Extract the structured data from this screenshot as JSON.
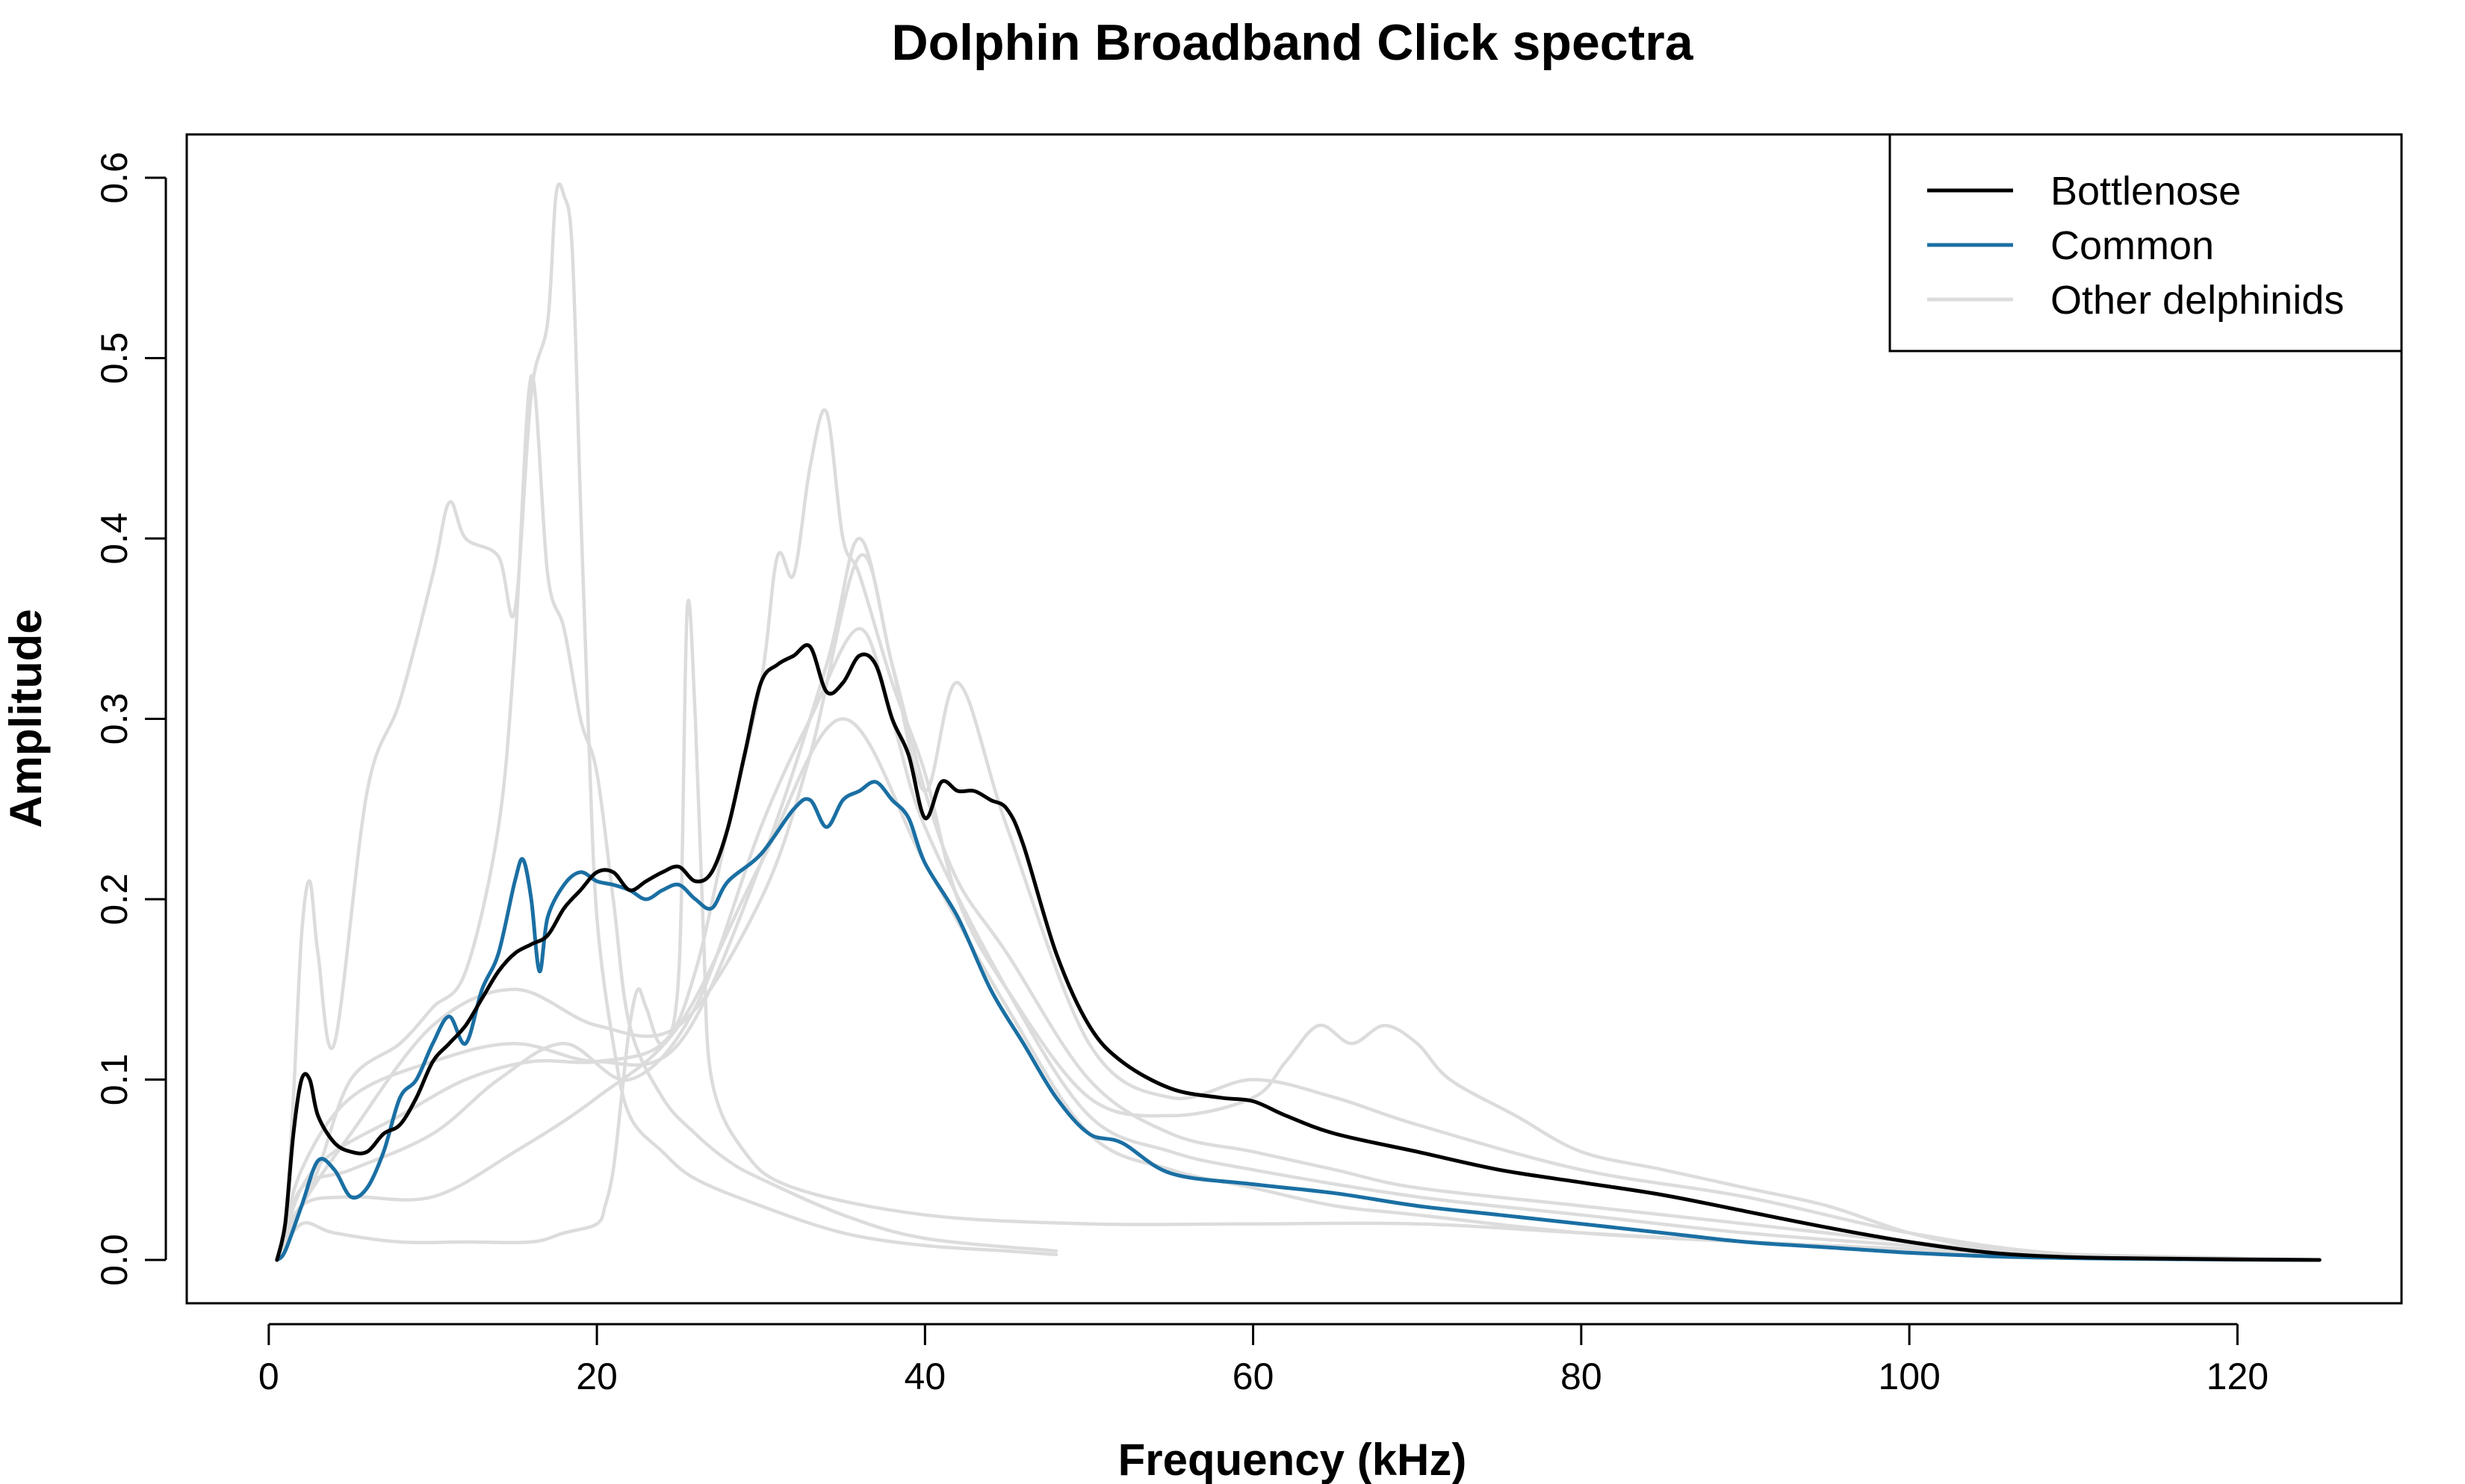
{
  "chart_data": {
    "type": "line",
    "title": "Dolphin Broadband Click spectra",
    "xlabel": "Frequency (kHz)",
    "ylabel": "Amplitude",
    "xlim": [
      -5,
      130
    ],
    "ylim": [
      -0.024,
      0.624
    ],
    "xticks": [
      0,
      20,
      40,
      60,
      80,
      100,
      120
    ],
    "yticks": [
      0.0,
      0.1,
      0.2,
      0.3,
      0.4,
      0.5,
      0.6
    ],
    "xtick_labels": [
      "0",
      "20",
      "40",
      "60",
      "80",
      "100",
      "120"
    ],
    "ytick_labels": [
      "0.0",
      "0.1",
      "0.2",
      "0.3",
      "0.4",
      "0.5",
      "0.6"
    ],
    "grid": false,
    "legend_position": "top-right",
    "legend": [
      {
        "label": "Bottlenose",
        "color": "#000000"
      },
      {
        "label": "Common",
        "color": "#1a6fa3"
      },
      {
        "label": "Other delphinids",
        "color": "#dcdcdc"
      }
    ],
    "series": [
      {
        "group": "Other delphinids",
        "color": "#dcdcdc",
        "x": [
          0.5,
          1,
          1.5,
          2,
          2.5,
          3,
          4,
          6,
          8,
          10,
          11,
          12,
          14,
          15,
          16,
          17,
          17.5,
          18,
          18.5,
          19,
          19.5,
          20,
          21,
          22,
          24,
          26,
          30,
          35,
          40,
          45,
          48
        ],
        "y": [
          0.0,
          0.02,
          0.09,
          0.18,
          0.21,
          0.17,
          0.12,
          0.26,
          0.31,
          0.38,
          0.42,
          0.4,
          0.39,
          0.36,
          0.48,
          0.52,
          0.59,
          0.59,
          0.56,
          0.42,
          0.29,
          0.19,
          0.12,
          0.08,
          0.06,
          0.045,
          0.03,
          0.015,
          0.008,
          0.005,
          0.003
        ]
      },
      {
        "group": "Other delphinids",
        "color": "#dcdcdc",
        "x": [
          0.5,
          1.5,
          3,
          5,
          8,
          10,
          12,
          14,
          15,
          16,
          17,
          18,
          19,
          20,
          21,
          22,
          24,
          26,
          28,
          30,
          35,
          40,
          48
        ],
        "y": [
          0.0,
          0.02,
          0.05,
          0.1,
          0.12,
          0.14,
          0.16,
          0.24,
          0.34,
          0.49,
          0.38,
          0.35,
          0.3,
          0.27,
          0.2,
          0.13,
          0.09,
          0.07,
          0.055,
          0.045,
          0.025,
          0.012,
          0.005
        ]
      },
      {
        "group": "Other delphinids",
        "color": "#dcdcdc",
        "x": [
          0.5,
          2,
          4,
          8,
          12,
          16,
          18,
          20,
          20.5,
          21,
          21.5,
          22,
          22.5,
          23,
          24,
          25,
          25.5,
          26,
          26.5,
          27,
          29,
          32,
          40,
          50,
          60,
          70,
          80,
          90,
          100,
          110,
          120,
          125
        ],
        "y": [
          0.0,
          0.02,
          0.015,
          0.01,
          0.01,
          0.01,
          0.015,
          0.02,
          0.03,
          0.05,
          0.09,
          0.13,
          0.15,
          0.14,
          0.12,
          0.16,
          0.36,
          0.3,
          0.18,
          0.1,
          0.06,
          0.04,
          0.025,
          0.02,
          0.02,
          0.02,
          0.015,
          0.01,
          0.006,
          0.003,
          0.001,
          0.0
        ]
      },
      {
        "group": "Other delphinids",
        "color": "#dcdcdc",
        "x": [
          0.5,
          2,
          4,
          8,
          12,
          16,
          20,
          24,
          26,
          28,
          30,
          31,
          32,
          33,
          34,
          35,
          36,
          38,
          40,
          42,
          45,
          50,
          55,
          60,
          62,
          64,
          66,
          68,
          70,
          72,
          76,
          80,
          85,
          90,
          95,
          100,
          105,
          110,
          120,
          125
        ],
        "y": [
          0.0,
          0.04,
          0.06,
          0.08,
          0.1,
          0.11,
          0.11,
          0.12,
          0.16,
          0.24,
          0.32,
          0.39,
          0.38,
          0.44,
          0.47,
          0.4,
          0.38,
          0.32,
          0.27,
          0.2,
          0.15,
          0.09,
          0.08,
          0.09,
          0.11,
          0.13,
          0.12,
          0.13,
          0.12,
          0.1,
          0.08,
          0.06,
          0.05,
          0.04,
          0.03,
          0.015,
          0.006,
          0.002,
          0.0005,
          0.0
        ]
      },
      {
        "group": "Other delphinids",
        "color": "#dcdcdc",
        "x": [
          0.5,
          2,
          5,
          10,
          15,
          20,
          25,
          30,
          34,
          36,
          38,
          40,
          42,
          45,
          50,
          55,
          60,
          65,
          70,
          80,
          90,
          100,
          110,
          125
        ],
        "y": [
          0.0,
          0.05,
          0.09,
          0.11,
          0.12,
          0.11,
          0.12,
          0.22,
          0.33,
          0.4,
          0.33,
          0.26,
          0.32,
          0.24,
          0.12,
          0.09,
          0.1,
          0.09,
          0.075,
          0.05,
          0.035,
          0.015,
          0.003,
          0.0
        ]
      },
      {
        "group": "Other delphinids",
        "color": "#dcdcdc",
        "x": [
          0.5,
          2,
          5,
          10,
          15,
          20,
          25,
          30,
          33,
          36,
          38,
          40,
          42,
          45,
          50,
          55,
          60,
          65,
          70,
          80,
          90,
          100,
          110,
          125
        ],
        "y": [
          0.0,
          0.03,
          0.07,
          0.13,
          0.15,
          0.13,
          0.13,
          0.2,
          0.28,
          0.39,
          0.33,
          0.26,
          0.21,
          0.17,
          0.1,
          0.07,
          0.06,
          0.05,
          0.04,
          0.03,
          0.02,
          0.01,
          0.002,
          0.0
        ]
      },
      {
        "group": "Other delphinids",
        "color": "#dcdcdc",
        "x": [
          0.5,
          2,
          5,
          10,
          14,
          18,
          22,
          26,
          30,
          33,
          36,
          38,
          40,
          45,
          50,
          55,
          60,
          70,
          80,
          90,
          100,
          110,
          125
        ],
        "y": [
          0.0,
          0.04,
          0.05,
          0.07,
          0.1,
          0.12,
          0.1,
          0.14,
          0.24,
          0.3,
          0.35,
          0.3,
          0.24,
          0.15,
          0.08,
          0.06,
          0.05,
          0.035,
          0.025,
          0.015,
          0.008,
          0.002,
          0.0
        ]
      },
      {
        "group": "Other delphinids",
        "color": "#dcdcdc",
        "x": [
          0.5,
          2,
          5,
          10,
          15,
          20,
          25,
          30,
          35,
          40,
          45,
          50,
          55,
          60,
          65,
          70,
          80,
          90,
          100,
          110,
          125
        ],
        "y": [
          0.0,
          0.03,
          0.035,
          0.035,
          0.06,
          0.09,
          0.13,
          0.22,
          0.3,
          0.22,
          0.14,
          0.07,
          0.05,
          0.04,
          0.03,
          0.025,
          0.015,
          0.01,
          0.005,
          0.001,
          0.0
        ]
      },
      {
        "name": "Common",
        "color": "#1a6fa3",
        "x": [
          0.5,
          1,
          2,
          3,
          4,
          5,
          6,
          7,
          8,
          9,
          10,
          11,
          12,
          13,
          14,
          15,
          15.5,
          16,
          16.5,
          17,
          18,
          19,
          20,
          21,
          22,
          23,
          24,
          25,
          26,
          27,
          28,
          30,
          32,
          33,
          34,
          35,
          36,
          37,
          38,
          39,
          40,
          42,
          44,
          46,
          48,
          50,
          52,
          55,
          60,
          65,
          70,
          75,
          80,
          85,
          90,
          95,
          100,
          105,
          110,
          115,
          120,
          125
        ],
        "y": [
          0.0,
          0.005,
          0.03,
          0.055,
          0.05,
          0.035,
          0.04,
          0.06,
          0.09,
          0.1,
          0.12,
          0.135,
          0.12,
          0.15,
          0.17,
          0.21,
          0.222,
          0.2,
          0.16,
          0.19,
          0.208,
          0.215,
          0.21,
          0.208,
          0.205,
          0.2,
          0.205,
          0.208,
          0.2,
          0.195,
          0.21,
          0.225,
          0.25,
          0.255,
          0.24,
          0.255,
          0.26,
          0.265,
          0.255,
          0.245,
          0.22,
          0.19,
          0.15,
          0.12,
          0.09,
          0.07,
          0.065,
          0.048,
          0.042,
          0.037,
          0.03,
          0.025,
          0.02,
          0.015,
          0.01,
          0.007,
          0.004,
          0.002,
          0.001,
          0.0005,
          0.0002,
          0.0
        ]
      },
      {
        "name": "Bottlenose",
        "color": "#000000",
        "x": [
          0.5,
          1,
          1.5,
          2,
          2.5,
          3,
          4,
          5,
          6,
          7,
          8,
          9,
          10,
          11,
          12,
          13,
          14,
          15,
          16,
          17,
          18,
          19,
          20,
          21,
          22,
          23,
          24,
          25,
          26,
          27,
          28,
          29,
          30,
          31,
          32,
          33,
          34,
          35,
          36,
          37,
          38,
          39,
          40,
          41,
          42,
          43,
          44,
          45,
          46,
          48,
          50,
          52,
          55,
          58,
          60,
          62,
          65,
          70,
          75,
          80,
          85,
          90,
          95,
          100,
          105,
          110,
          115,
          120,
          125
        ],
        "y": [
          0.0,
          0.02,
          0.07,
          0.1,
          0.1,
          0.08,
          0.065,
          0.06,
          0.06,
          0.07,
          0.075,
          0.09,
          0.11,
          0.12,
          0.13,
          0.145,
          0.16,
          0.17,
          0.175,
          0.18,
          0.195,
          0.205,
          0.215,
          0.215,
          0.205,
          0.21,
          0.215,
          0.218,
          0.21,
          0.215,
          0.24,
          0.28,
          0.32,
          0.33,
          0.335,
          0.34,
          0.315,
          0.32,
          0.335,
          0.33,
          0.3,
          0.28,
          0.245,
          0.265,
          0.26,
          0.26,
          0.255,
          0.25,
          0.23,
          0.17,
          0.13,
          0.11,
          0.095,
          0.09,
          0.088,
          0.08,
          0.07,
          0.06,
          0.05,
          0.043,
          0.036,
          0.027,
          0.018,
          0.01,
          0.004,
          0.0015,
          0.0008,
          0.0003,
          0.0
        ]
      }
    ]
  }
}
